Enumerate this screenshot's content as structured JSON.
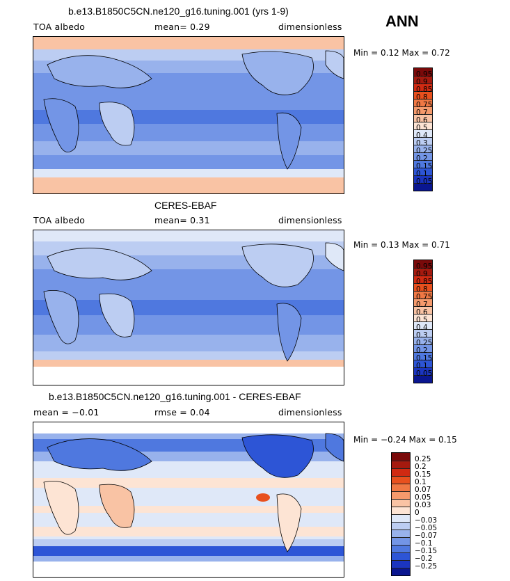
{
  "season": "ANN",
  "panels": [
    {
      "title": "b.e13.B1850C5CN.ne120_g16.tuning.001 (yrs 1-9)",
      "left_label": "TOA albedo",
      "center_label": "mean=   0.29",
      "right_label": "dimensionless",
      "min_max": "Min =   0.12 Max =   0.72",
      "levels": [
        "0.95",
        "0.9",
        "0.85",
        "0.8",
        "0.75",
        "0.7",
        "0.6",
        "0.5",
        "0.4",
        "0.3",
        "0.25",
        "0.2",
        "0.15",
        "0.1",
        "0.05"
      ]
    },
    {
      "title": "CERES-EBAF",
      "left_label": "TOA albedo",
      "center_label": "mean=   0.31",
      "right_label": "dimensionless",
      "min_max": "Min =   0.13 Max =   0.71",
      "levels": [
        "0.95",
        "0.9",
        "0.85",
        "0.8",
        "0.75",
        "0.7",
        "0.6",
        "0.5",
        "0.4",
        "0.3",
        "0.25",
        "0.2",
        "0.15",
        "0.1",
        "0.05"
      ]
    },
    {
      "title": "b.e13.B1850C5CN.ne120_g16.tuning.001 - CERES-EBAF",
      "left_label": "mean =  −0.01",
      "center_label": "rmse =   0.04",
      "right_label": "dimensionless",
      "min_max": "Min =  −0.24 Max =   0.15",
      "levels": [
        "0.25",
        "0.2",
        "0.15",
        "0.1",
        "0.07",
        "0.05",
        "0.03",
        "0",
        "−0.03",
        "−0.05",
        "−0.07",
        "−0.1",
        "−0.15",
        "−0.2",
        "−0.25"
      ]
    }
  ],
  "colors": {
    "seq": [
      "#7a0a0a",
      "#a51a0f",
      "#d12a12",
      "#e8501e",
      "#f07844",
      "#f59a6c",
      "#f9c3a4",
      "#fde4d4",
      "#dfe8f8",
      "#bccdf2",
      "#98b2ec",
      "#7395e6",
      "#4f78df",
      "#2d55d6",
      "#1b35c0",
      "#0a1690"
    ],
    "land": "#000000"
  }
}
